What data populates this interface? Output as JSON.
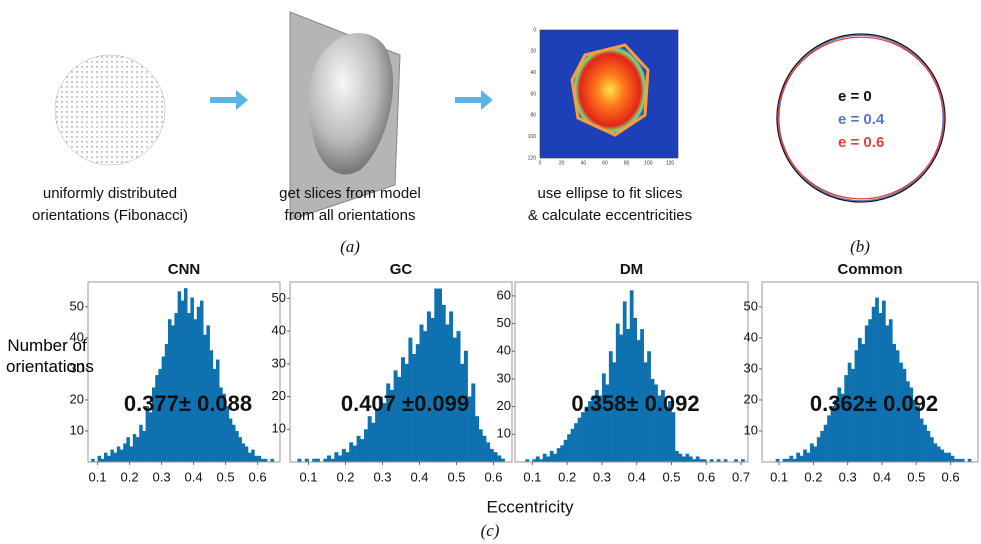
{
  "panel_a": {
    "steps": [
      {
        "caption": [
          "uniformly distributed",
          "orientations (Fibonacci)"
        ]
      },
      {
        "caption": [
          "get slices from model",
          "from all orientations"
        ]
      },
      {
        "caption": [
          "use ellipse to fit slices",
          "& calculate eccentricities"
        ]
      }
    ],
    "heatmap_ticks": [
      0,
      20,
      40,
      60,
      80,
      100,
      120
    ],
    "label": "(a)"
  },
  "panel_b": {
    "ellipses": [
      {
        "label": "e = 0",
        "e": 0,
        "color": "#111111"
      },
      {
        "label": "e = 0.4",
        "e": 0.4,
        "color": "#5a74c8"
      },
      {
        "label": "e = 0.6",
        "e": 0.6,
        "color": "#e0403a"
      }
    ],
    "label": "(b)"
  },
  "panel_c": {
    "ylabel": "Number of orientations",
    "xlabel": "Eccentricity",
    "label": "(c)"
  },
  "chart_data": [
    {
      "type": "histogram",
      "title": "CNN",
      "annotation": "0.377± 0.088",
      "color": "#0f71b0",
      "bins": [
        0.08,
        0.09,
        0.1,
        0.11,
        0.12,
        0.13,
        0.14,
        0.15,
        0.16,
        0.17,
        0.18,
        0.19,
        0.2,
        0.21,
        0.22,
        0.23,
        0.24,
        0.25,
        0.26,
        0.27,
        0.28,
        0.29,
        0.3,
        0.31,
        0.32,
        0.33,
        0.34,
        0.35,
        0.36,
        0.37,
        0.38,
        0.39,
        0.4,
        0.41,
        0.42,
        0.43,
        0.44,
        0.45,
        0.46,
        0.47,
        0.48,
        0.49,
        0.5,
        0.51,
        0.52,
        0.53,
        0.54,
        0.55,
        0.56,
        0.57,
        0.58,
        0.59,
        0.6,
        0.61,
        0.62,
        0.63,
        0.64,
        0.65,
        0.66
      ],
      "values": [
        1,
        0,
        2,
        1,
        3,
        2,
        4,
        3,
        5,
        4,
        6,
        8,
        5,
        9,
        8,
        12,
        10,
        18,
        16,
        24,
        28,
        30,
        34,
        38,
        46,
        44,
        48,
        55,
        52,
        56,
        48,
        53,
        46,
        50,
        52,
        41,
        44,
        36,
        30,
        33,
        24,
        22,
        18,
        14,
        12,
        10,
        8,
        6,
        5,
        3,
        4,
        2,
        2,
        1,
        1,
        0,
        1,
        0
      ],
      "xlim": [
        0.07,
        0.67
      ],
      "xticks": [
        0.1,
        0.2,
        0.3,
        0.4,
        0.5,
        0.6
      ],
      "ylim": [
        0,
        58
      ],
      "yticks": [
        10,
        20,
        30,
        40,
        50
      ]
    },
    {
      "type": "histogram",
      "title": "GC",
      "annotation": "0.407 ±0.099",
      "color": "#0f71b0",
      "bins": [
        0.07,
        0.08,
        0.09,
        0.1,
        0.11,
        0.12,
        0.13,
        0.14,
        0.15,
        0.16,
        0.17,
        0.18,
        0.19,
        0.2,
        0.21,
        0.22,
        0.23,
        0.24,
        0.25,
        0.26,
        0.27,
        0.28,
        0.29,
        0.3,
        0.31,
        0.32,
        0.33,
        0.34,
        0.35,
        0.36,
        0.37,
        0.38,
        0.39,
        0.4,
        0.41,
        0.42,
        0.43,
        0.44,
        0.45,
        0.46,
        0.47,
        0.48,
        0.49,
        0.5,
        0.51,
        0.52,
        0.53,
        0.54,
        0.55,
        0.56,
        0.57,
        0.58,
        0.59,
        0.6,
        0.61,
        0.62,
        0.63
      ],
      "values": [
        1,
        0,
        1,
        0,
        1,
        1,
        0,
        1,
        2,
        1,
        3,
        2,
        4,
        3,
        6,
        5,
        8,
        7,
        10,
        14,
        12,
        16,
        20,
        18,
        24,
        22,
        28,
        26,
        32,
        30,
        38,
        33,
        36,
        42,
        40,
        46,
        44,
        53,
        53,
        48,
        42,
        46,
        38,
        40,
        30,
        34,
        20,
        24,
        14,
        10,
        8,
        6,
        4,
        3,
        2,
        1
      ],
      "xlim": [
        0.05,
        0.65
      ],
      "xticks": [
        0.1,
        0.2,
        0.3,
        0.4,
        0.5,
        0.6
      ],
      "ylim": [
        0,
        55
      ],
      "yticks": [
        10,
        20,
        30,
        40,
        50
      ]
    },
    {
      "type": "histogram",
      "title": "DM",
      "annotation": "0.358± 0.092",
      "color": "#0f71b0",
      "bins": [
        0.08,
        0.09,
        0.1,
        0.11,
        0.12,
        0.13,
        0.14,
        0.15,
        0.16,
        0.17,
        0.18,
        0.19,
        0.2,
        0.21,
        0.22,
        0.23,
        0.24,
        0.25,
        0.26,
        0.27,
        0.28,
        0.29,
        0.3,
        0.31,
        0.32,
        0.33,
        0.34,
        0.35,
        0.36,
        0.37,
        0.38,
        0.39,
        0.4,
        0.41,
        0.42,
        0.43,
        0.44,
        0.45,
        0.46,
        0.47,
        0.48,
        0.49,
        0.5,
        0.51,
        0.52,
        0.53,
        0.54,
        0.55,
        0.56,
        0.57,
        0.58,
        0.59,
        0.6,
        0.61,
        0.62,
        0.63,
        0.64,
        0.65,
        0.66,
        0.67,
        0.68,
        0.69,
        0.7,
        0.71
      ],
      "values": [
        1,
        0,
        1,
        2,
        1,
        3,
        2,
        4,
        3,
        5,
        6,
        8,
        10,
        12,
        14,
        16,
        18,
        20,
        22,
        24,
        26,
        24,
        32,
        28,
        40,
        36,
        50,
        46,
        58,
        48,
        62,
        52,
        44,
        48,
        36,
        40,
        30,
        28,
        24,
        26,
        20,
        22,
        18,
        4,
        3,
        2,
        3,
        2,
        1,
        2,
        1,
        1,
        0,
        1,
        0,
        1,
        0,
        1,
        0,
        0,
        1,
        0,
        1
      ],
      "xlim": [
        0.05,
        0.72
      ],
      "xticks": [
        0.1,
        0.2,
        0.3,
        0.4,
        0.5,
        0.6,
        0.7
      ],
      "ylim": [
        0,
        65
      ],
      "yticks": [
        10,
        20,
        30,
        40,
        50,
        60
      ]
    },
    {
      "type": "histogram",
      "title": "Common",
      "annotation": "0.362± 0.092",
      "color": "#0f71b0",
      "bins": [
        0.09,
        0.1,
        0.11,
        0.12,
        0.13,
        0.14,
        0.15,
        0.16,
        0.17,
        0.18,
        0.19,
        0.2,
        0.21,
        0.22,
        0.23,
        0.24,
        0.25,
        0.26,
        0.27,
        0.28,
        0.29,
        0.3,
        0.31,
        0.32,
        0.33,
        0.34,
        0.35,
        0.36,
        0.37,
        0.38,
        0.39,
        0.4,
        0.41,
        0.42,
        0.43,
        0.44,
        0.45,
        0.46,
        0.47,
        0.48,
        0.49,
        0.5,
        0.51,
        0.52,
        0.53,
        0.54,
        0.55,
        0.56,
        0.57,
        0.58,
        0.59,
        0.6,
        0.61,
        0.62,
        0.63,
        0.64,
        0.65,
        0.66,
        0.67
      ],
      "values": [
        1,
        0,
        1,
        1,
        2,
        1,
        3,
        2,
        4,
        3,
        6,
        5,
        8,
        10,
        12,
        15,
        18,
        20,
        24,
        22,
        28,
        32,
        30,
        36,
        40,
        38,
        44,
        46,
        50,
        53,
        48,
        52,
        44,
        46,
        38,
        36,
        32,
        30,
        26,
        24,
        20,
        18,
        14,
        12,
        10,
        8,
        6,
        5,
        4,
        3,
        3,
        2,
        1,
        1,
        1,
        0,
        1,
        0
      ],
      "xlim": [
        0.05,
        0.68
      ],
      "xticks": [
        0.1,
        0.2,
        0.3,
        0.4,
        0.5,
        0.6
      ],
      "ylim": [
        0,
        58
      ],
      "yticks": [
        10,
        20,
        30,
        40,
        50
      ]
    }
  ]
}
